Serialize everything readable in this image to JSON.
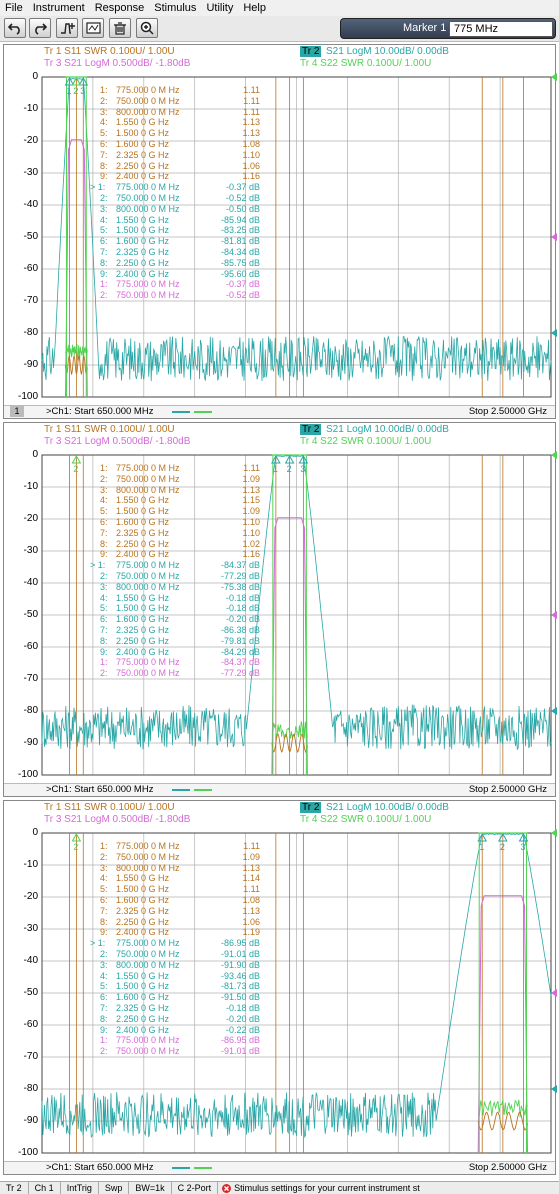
{
  "menu": [
    "File",
    "Instrument",
    "Response",
    "Stimulus",
    "Utility",
    "Help"
  ],
  "toolbar": {
    "icons": [
      "undo-icon",
      "redo-icon",
      "add-trace-icon",
      "marker-icon",
      "delete-icon",
      "zoom-icon"
    ],
    "marker_label": "Marker 1",
    "marker_value": "775 MHz"
  },
  "colors": {
    "tr1": "#b8731e",
    "tr2": "#2aa6a6",
    "tr3": "#d56ad6",
    "tr4": "#52d252",
    "grid": "#555555"
  },
  "panes": [
    {
      "chnum": "1",
      "headers": [
        {
          "t": "Tr  1   S11 SWR 0.100U/  1.00U",
          "c": "tr1"
        },
        {
          "t": "Tr  2",
          "c": "tr2",
          "active": true
        },
        {
          "t": "S21 LogM 10.00dB/  0.00dB",
          "c": "tr2"
        },
        {
          "t": "Tr  3   S21 LogM 0.500dB/  -1.80dB",
          "c": "tr3"
        },
        {
          "t": "Tr  4   S22 SWR 0.100U/  1.00U",
          "c": "tr4"
        }
      ],
      "markers": [
        {
          "n": "1:",
          "f": "775.000 0 M Hz",
          "v": "1.11",
          "c": "tr1"
        },
        {
          "n": "2:",
          "f": "750.000 0 M Hz",
          "v": "1.11",
          "c": "tr1"
        },
        {
          "n": "3:",
          "f": "800.000 0 M Hz",
          "v": "1.11",
          "c": "tr1"
        },
        {
          "n": "4:",
          "f": "1.550 0 G Hz",
          "v": "1.13",
          "c": "tr1"
        },
        {
          "n": "5:",
          "f": "1.500 0 G Hz",
          "v": "1.13",
          "c": "tr1"
        },
        {
          "n": "6:",
          "f": "1.600 0 G Hz",
          "v": "1.08",
          "c": "tr1"
        },
        {
          "n": "7:",
          "f": "2.325 0 G Hz",
          "v": "1.10",
          "c": "tr1"
        },
        {
          "n": "8:",
          "f": "2.250 0 G Hz",
          "v": "1.06",
          "c": "tr1"
        },
        {
          "n": "9:",
          "f": "2.400 0 G Hz",
          "v": "1.16",
          "c": "tr1"
        },
        {
          "n": "> 1:",
          "f": "775.000 0 M Hz",
          "v": "-0.37 dB",
          "c": "tr2"
        },
        {
          "n": "2:",
          "f": "750.000 0 M Hz",
          "v": "-0.52 dB",
          "c": "tr2"
        },
        {
          "n": "3:",
          "f": "800.000 0 M Hz",
          "v": "-0.50 dB",
          "c": "tr2"
        },
        {
          "n": "4:",
          "f": "1.550 0 G Hz",
          "v": "-85.94 dB",
          "c": "tr2"
        },
        {
          "n": "5:",
          "f": "1.500 0 G Hz",
          "v": "-83.25 dB",
          "c": "tr2"
        },
        {
          "n": "6:",
          "f": "1.600 0 G Hz",
          "v": "-81.81 dB",
          "c": "tr2"
        },
        {
          "n": "7:",
          "f": "2.325 0 G Hz",
          "v": "-84.34 dB",
          "c": "tr2"
        },
        {
          "n": "8:",
          "f": "2.250 0 G Hz",
          "v": "-85.75 dB",
          "c": "tr2"
        },
        {
          "n": "9:",
          "f": "2.400 0 G Hz",
          "v": "-95.60 dB",
          "c": "tr2"
        },
        {
          "n": "1:",
          "f": "775.000 0 M Hz",
          "v": "-0.37 dB",
          "c": "tr3"
        },
        {
          "n": "2:",
          "f": "750.000 0 M Hz",
          "v": "-0.52 dB",
          "c": "tr3"
        }
      ],
      "start": ">Ch1:  Start   650.000 MHz",
      "stop": "Stop  2.50000 GHz"
    },
    {
      "chnum": "",
      "headers": [
        {
          "t": "Tr  1   S11 SWR 0.100U/  1.00U",
          "c": "tr1"
        },
        {
          "t": "Tr  2",
          "c": "tr2",
          "active": true
        },
        {
          "t": "S21 LogM 10.00dB/  0.00dB",
          "c": "tr2"
        },
        {
          "t": "Tr  3   S21 LogM 0.500dB/  -1.80dB",
          "c": "tr3"
        },
        {
          "t": "Tr  4   S22 SWR 0.100U/  1.00U",
          "c": "tr4"
        }
      ],
      "markers": [
        {
          "n": "1:",
          "f": "775.000 0 M Hz",
          "v": "1.11",
          "c": "tr1"
        },
        {
          "n": "2:",
          "f": "750.000 0 M Hz",
          "v": "1.09",
          "c": "tr1"
        },
        {
          "n": "3:",
          "f": "800.000 0 M Hz",
          "v": "1.13",
          "c": "tr1"
        },
        {
          "n": "4:",
          "f": "1.550 0 G Hz",
          "v": "1.15",
          "c": "tr1"
        },
        {
          "n": "5:",
          "f": "1.500 0 G Hz",
          "v": "1.09",
          "c": "tr1"
        },
        {
          "n": "6:",
          "f": "1.600 0 G Hz",
          "v": "1.10",
          "c": "tr1"
        },
        {
          "n": "7:",
          "f": "2.325 0 G Hz",
          "v": "1.10",
          "c": "tr1"
        },
        {
          "n": "8:",
          "f": "2.250 0 G Hz",
          "v": "1.02",
          "c": "tr1"
        },
        {
          "n": "9:",
          "f": "2.400 0 G Hz",
          "v": "1.16",
          "c": "tr1"
        },
        {
          "n": "> 1:",
          "f": "775.000 0 M Hz",
          "v": "-84.37 dB",
          "c": "tr2"
        },
        {
          "n": "2:",
          "f": "750.000 0 M Hz",
          "v": "-77.29 dB",
          "c": "tr2"
        },
        {
          "n": "3:",
          "f": "800.000 0 M Hz",
          "v": "-75.38 dB",
          "c": "tr2"
        },
        {
          "n": "4:",
          "f": "1.550 0 G Hz",
          "v": "-0.18 dB",
          "c": "tr2"
        },
        {
          "n": "5:",
          "f": "1.500 0 G Hz",
          "v": "-0.18 dB",
          "c": "tr2"
        },
        {
          "n": "6:",
          "f": "1.600 0 G Hz",
          "v": "-0.20 dB",
          "c": "tr2"
        },
        {
          "n": "7:",
          "f": "2.325 0 G Hz",
          "v": "-86.38 dB",
          "c": "tr2"
        },
        {
          "n": "8:",
          "f": "2.250 0 G Hz",
          "v": "-79.81 dB",
          "c": "tr2"
        },
        {
          "n": "9:",
          "f": "2.400 0 G Hz",
          "v": "-84.29 dB",
          "c": "tr2"
        },
        {
          "n": "1:",
          "f": "775.000 0 M Hz",
          "v": "-84.37 dB",
          "c": "tr3"
        },
        {
          "n": "2:",
          "f": "750.000 0 M Hz",
          "v": "-77.29 dB",
          "c": "tr3"
        }
      ],
      "start": ">Ch1:  Start   650.000 MHz",
      "stop": "Stop  2.50000 GHz"
    },
    {
      "chnum": "",
      "headers": [
        {
          "t": "Tr  1   S11 SWR 0.100U/  1.00U",
          "c": "tr1"
        },
        {
          "t": "Tr  2",
          "c": "tr2",
          "active": true
        },
        {
          "t": "S21 LogM 10.00dB/  0.00dB",
          "c": "tr2"
        },
        {
          "t": "Tr  3   S21 LogM 0.500dB/  -1.80dB",
          "c": "tr3"
        },
        {
          "t": "Tr  4   S22 SWR 0.100U/  1.00U",
          "c": "tr4"
        }
      ],
      "markers": [
        {
          "n": "1:",
          "f": "775.000 0 M Hz",
          "v": "1.11",
          "c": "tr1"
        },
        {
          "n": "2:",
          "f": "750.000 0 M Hz",
          "v": "1.09",
          "c": "tr1"
        },
        {
          "n": "3:",
          "f": "800.000 0 M Hz",
          "v": "1.13",
          "c": "tr1"
        },
        {
          "n": "4:",
          "f": "1.550 0 G Hz",
          "v": "1.14",
          "c": "tr1"
        },
        {
          "n": "5:",
          "f": "1.500 0 G Hz",
          "v": "1.11",
          "c": "tr1"
        },
        {
          "n": "6:",
          "f": "1.600 0 G Hz",
          "v": "1.08",
          "c": "tr1"
        },
        {
          "n": "7:",
          "f": "2.325 0 G Hz",
          "v": "1.13",
          "c": "tr1"
        },
        {
          "n": "8:",
          "f": "2.250 0 G Hz",
          "v": "1.06",
          "c": "tr1"
        },
        {
          "n": "9:",
          "f": "2.400 0 G Hz",
          "v": "1.19",
          "c": "tr1"
        },
        {
          "n": "> 1:",
          "f": "775.000 0 M Hz",
          "v": "-86.95 dB",
          "c": "tr2"
        },
        {
          "n": "2:",
          "f": "750.000 0 M Hz",
          "v": "-91.01 dB",
          "c": "tr2"
        },
        {
          "n": "3:",
          "f": "800.000 0 M Hz",
          "v": "-91.90 dB",
          "c": "tr2"
        },
        {
          "n": "4:",
          "f": "1.550 0 G Hz",
          "v": "-93.46 dB",
          "c": "tr2"
        },
        {
          "n": "5:",
          "f": "1.500 0 G Hz",
          "v": "-81.73 dB",
          "c": "tr2"
        },
        {
          "n": "6:",
          "f": "1.600 0 G Hz",
          "v": "-91.50 dB",
          "c": "tr2"
        },
        {
          "n": "7:",
          "f": "2.325 0 G Hz",
          "v": "-0.18 dB",
          "c": "tr2"
        },
        {
          "n": "8:",
          "f": "2.250 0 G Hz",
          "v": "-0.20 dB",
          "c": "tr2"
        },
        {
          "n": "9:",
          "f": "2.400 0 G Hz",
          "v": "-0.22 dB",
          "c": "tr2"
        },
        {
          "n": "1:",
          "f": "775.000 0 M Hz",
          "v": "-86.95 dB",
          "c": "tr3"
        },
        {
          "n": "2:",
          "f": "750.000 0 M Hz",
          "v": "-91.01 dB",
          "c": "tr3"
        }
      ],
      "start": ">Ch1:  Start   650.000 MHz",
      "stop": "Stop  2.50000 GHz"
    }
  ],
  "chart_data": [
    {
      "type": "line",
      "ylim": [
        -100,
        0
      ],
      "xlim_MHz": [
        650,
        2500
      ],
      "yticks": [
        0,
        -10,
        -20,
        -30,
        -40,
        -50,
        -60,
        -70,
        -80,
        -90,
        -100
      ],
      "passband_MHz": [
        750,
        800
      ],
      "passband_level_dB": -0.4,
      "stopband_floor_dB": -88
    },
    {
      "type": "line",
      "ylim": [
        -100,
        0
      ],
      "xlim_MHz": [
        650,
        2500
      ],
      "yticks": [
        0,
        -10,
        -20,
        -30,
        -40,
        -50,
        -60,
        -70,
        -80,
        -90,
        -100
      ],
      "passband_MHz": [
        1500,
        1600
      ],
      "passband_level_dB": -0.2,
      "stopband_floor_dB": -85
    },
    {
      "type": "line",
      "ylim": [
        -100,
        0
      ],
      "xlim_MHz": [
        650,
        2500
      ],
      "yticks": [
        0,
        -10,
        -20,
        -30,
        -40,
        -50,
        -60,
        -70,
        -80,
        -90,
        -100
      ],
      "passband_MHz": [
        2250,
        2400
      ],
      "passband_level_dB": -0.2,
      "stopband_floor_dB": -88
    }
  ],
  "statusbar": {
    "items": [
      "Tr 2",
      "Ch 1",
      "IntTrig",
      "Swp",
      "BW=1k",
      "C  2-Port"
    ],
    "message": "Stimulus settings for your current instrument st"
  }
}
